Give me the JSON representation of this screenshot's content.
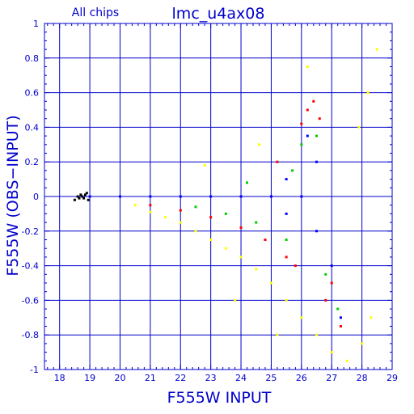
{
  "chart_data": {
    "type": "scatter",
    "title": "lmc_u4ax08",
    "subtitle": "All chips",
    "xlabel": "F555W INPUT",
    "ylabel": "F555W (OBS−INPUT)",
    "xlim": [
      17.5,
      29
    ],
    "ylim": [
      -1,
      1
    ],
    "x_ticks": [
      "18",
      "19",
      "20",
      "21",
      "22",
      "23",
      "24",
      "25",
      "26",
      "27",
      "28",
      "29"
    ],
    "y_ticks": [
      "1",
      "0.8",
      "0.6",
      "0.4",
      "0.2",
      "0",
      "-0.2",
      "-0.4",
      "-0.6",
      "-0.8",
      "-1"
    ],
    "grid": true,
    "series": [
      {
        "color": "#000000",
        "points": [
          [
            18.6,
            0.0
          ],
          [
            18.7,
            0.01
          ],
          [
            18.8,
            -0.01
          ],
          [
            18.9,
            0.02
          ],
          [
            18.5,
            -0.02
          ],
          [
            18.75,
            0.0
          ],
          [
            18.65,
            -0.01
          ],
          [
            18.85,
            0.01
          ],
          [
            19.0,
            0.0
          ],
          [
            18.95,
            -0.02
          ]
        ]
      },
      {
        "color": "#ffff00",
        "points": [
          [
            20.5,
            -0.05
          ],
          [
            21.0,
            -0.09
          ],
          [
            21.5,
            -0.12
          ],
          [
            22.0,
            -0.15
          ],
          [
            22.5,
            -0.2
          ],
          [
            23.0,
            -0.25
          ],
          [
            23.5,
            -0.3
          ],
          [
            24.0,
            -0.35
          ],
          [
            24.5,
            -0.42
          ],
          [
            25.0,
            -0.5
          ],
          [
            25.5,
            -0.6
          ],
          [
            26.0,
            -0.7
          ],
          [
            26.5,
            -0.8
          ],
          [
            27.0,
            -0.9
          ],
          [
            27.5,
            -0.95
          ],
          [
            28.0,
            -0.85
          ],
          [
            28.3,
            -0.7
          ],
          [
            28.5,
            0.85
          ],
          [
            28.2,
            0.6
          ],
          [
            27.9,
            0.4
          ],
          [
            22.8,
            0.18
          ],
          [
            24.6,
            0.3
          ],
          [
            25.2,
            -0.8
          ],
          [
            23.8,
            -0.6
          ],
          [
            26.2,
            0.75
          ]
        ]
      },
      {
        "color": "#ff0000",
        "points": [
          [
            21.0,
            -0.05
          ],
          [
            22.0,
            -0.08
          ],
          [
            23.0,
            -0.12
          ],
          [
            24.0,
            -0.18
          ],
          [
            24.8,
            -0.25
          ],
          [
            25.5,
            -0.35
          ],
          [
            26.0,
            0.42
          ],
          [
            26.2,
            0.5
          ],
          [
            26.4,
            0.55
          ],
          [
            26.6,
            0.45
          ],
          [
            27.0,
            -0.5
          ],
          [
            27.3,
            -0.75
          ],
          [
            25.8,
            -0.4
          ],
          [
            26.8,
            -0.6
          ],
          [
            25.2,
            0.2
          ]
        ]
      },
      {
        "color": "#00cc00",
        "points": [
          [
            22.5,
            -0.06
          ],
          [
            23.5,
            -0.1
          ],
          [
            24.5,
            -0.15
          ],
          [
            25.5,
            -0.25
          ],
          [
            26.0,
            0.3
          ],
          [
            26.5,
            0.35
          ],
          [
            26.8,
            -0.45
          ],
          [
            27.2,
            -0.65
          ],
          [
            25.7,
            0.15
          ],
          [
            24.2,
            0.08
          ]
        ]
      },
      {
        "color": "#0000ff",
        "points": [
          [
            19.0,
            0.0
          ],
          [
            20.0,
            0.0
          ],
          [
            21.0,
            0.0
          ],
          [
            22.0,
            0.0
          ],
          [
            23.0,
            0.0
          ],
          [
            24.0,
            0.0
          ],
          [
            25.0,
            0.0
          ],
          [
            26.0,
            0.0
          ],
          [
            26.5,
            0.2
          ],
          [
            26.5,
            -0.2
          ],
          [
            27.0,
            -0.4
          ],
          [
            27.3,
            -0.7
          ],
          [
            26.2,
            0.35
          ],
          [
            25.5,
            0.1
          ],
          [
            25.5,
            -0.1
          ]
        ]
      }
    ]
  }
}
